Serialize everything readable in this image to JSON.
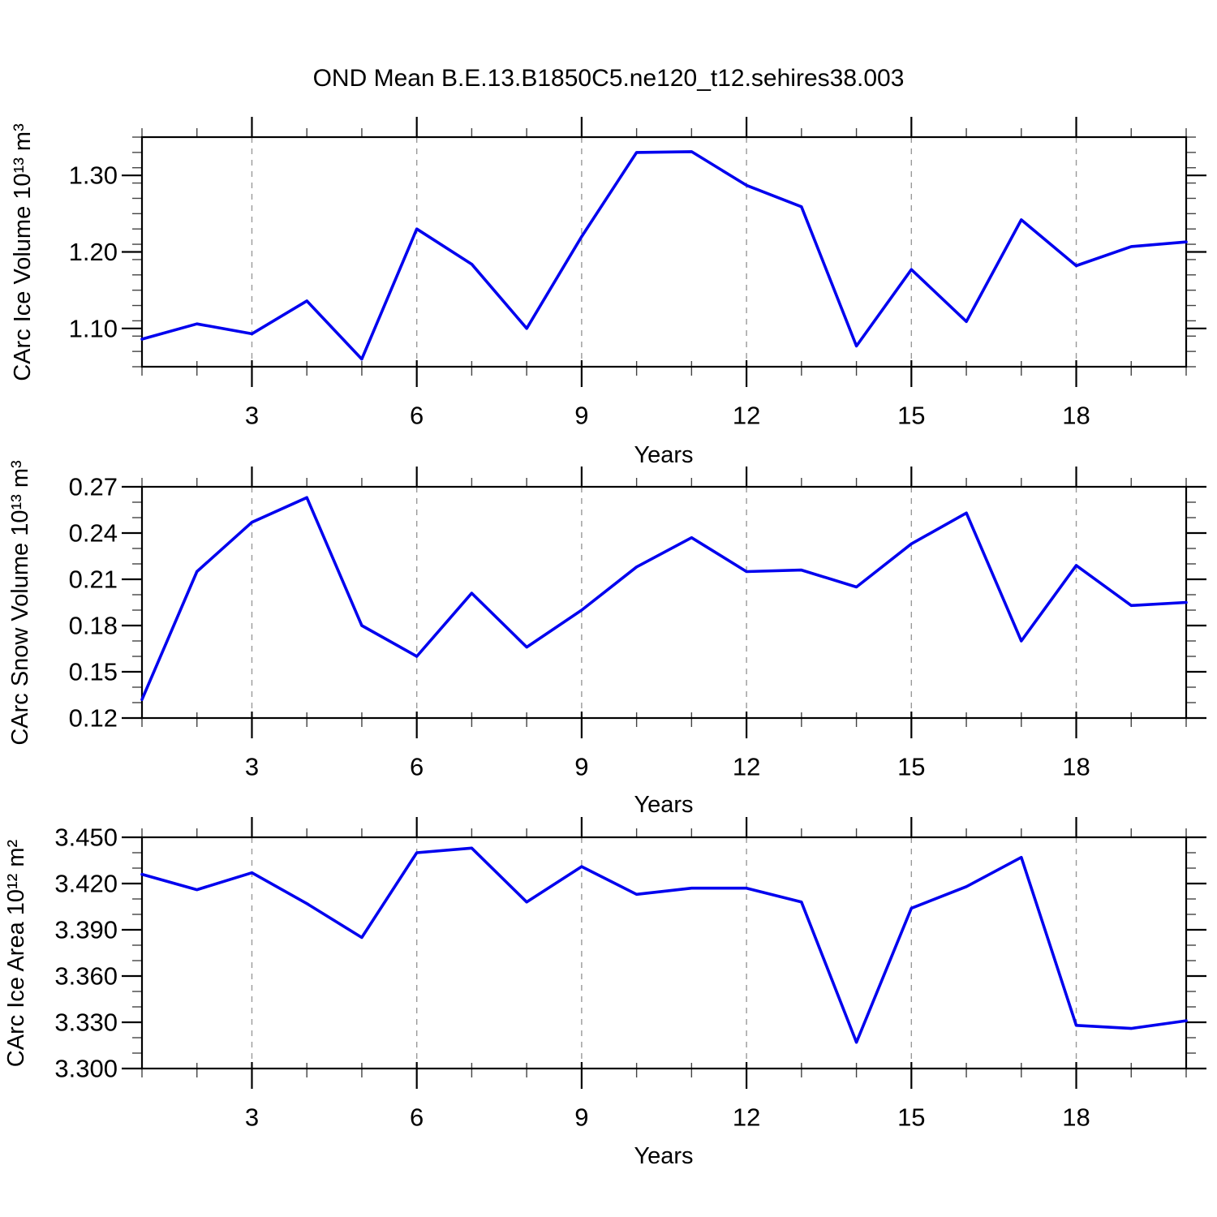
{
  "title": "OND Mean B.E.13.B1850C5.ne120_t12.sehires38.003",
  "colors": {
    "line": "#0000EE",
    "grid": "#999999",
    "frame": "#000000",
    "minor_tick": "#444444",
    "text": "#000000",
    "background": "#FFFFFF"
  },
  "chart_data": [
    {
      "type": "line",
      "ylabel": "CArc Ice Volume 10¹³ m³",
      "xlabel": "Years",
      "x": [
        1,
        2,
        3,
        4,
        5,
        6,
        7,
        8,
        9,
        10,
        11,
        12,
        13,
        14,
        15,
        16,
        17,
        18,
        19,
        20
      ],
      "values": [
        1.086,
        1.106,
        1.093,
        1.136,
        1.06,
        1.23,
        1.184,
        1.1,
        1.22,
        1.33,
        1.331,
        1.287,
        1.259,
        1.077,
        1.177,
        1.109,
        1.242,
        1.182,
        1.207,
        1.213
      ],
      "xlim": [
        1,
        20
      ],
      "ylim": [
        1.05,
        1.35
      ],
      "x_ticks_major": [
        3,
        6,
        9,
        12,
        15,
        18
      ],
      "x_tick_labels": [
        "3",
        "6",
        "9",
        "12",
        "15",
        "18"
      ],
      "x_tick_minor_step": 1,
      "y_ticks_major": [
        1.1,
        1.2,
        1.3
      ],
      "y_tick_labels": [
        "1.10",
        "1.20",
        "1.30"
      ],
      "y_tick_minor_step": 0.02,
      "grid": "vertical dashed lines at major x ticks",
      "legend": "none"
    },
    {
      "type": "line",
      "ylabel": "CArc Snow Volume 10¹³ m³",
      "xlabel": "Years",
      "x": [
        1,
        2,
        3,
        4,
        5,
        6,
        7,
        8,
        9,
        10,
        11,
        12,
        13,
        14,
        15,
        16,
        17,
        18,
        19,
        20
      ],
      "values": [
        0.132,
        0.215,
        0.247,
        0.263,
        0.18,
        0.16,
        0.201,
        0.166,
        0.19,
        0.218,
        0.237,
        0.215,
        0.216,
        0.205,
        0.233,
        0.253,
        0.17,
        0.219,
        0.193,
        0.195
      ],
      "xlim": [
        1,
        20
      ],
      "ylim": [
        0.12,
        0.27
      ],
      "x_ticks_major": [
        3,
        6,
        9,
        12,
        15,
        18
      ],
      "x_tick_labels": [
        "3",
        "6",
        "9",
        "12",
        "15",
        "18"
      ],
      "x_tick_minor_step": 1,
      "y_ticks_major": [
        0.12,
        0.15,
        0.18,
        0.21,
        0.24,
        0.27
      ],
      "y_tick_labels": [
        "0.12",
        "0.15",
        "0.18",
        "0.21",
        "0.24",
        "0.27"
      ],
      "y_tick_minor_step": 0.01,
      "grid": "vertical dashed lines at major x ticks",
      "legend": "none"
    },
    {
      "type": "line",
      "ylabel": "CArc Ice Area 10¹² m²",
      "xlabel": "Years",
      "x": [
        1,
        2,
        3,
        4,
        5,
        6,
        7,
        8,
        9,
        10,
        11,
        12,
        13,
        14,
        15,
        16,
        17,
        18,
        19,
        20
      ],
      "values": [
        3.426,
        3.416,
        3.427,
        3.407,
        3.385,
        3.44,
        3.443,
        3.408,
        3.431,
        3.413,
        3.417,
        3.417,
        3.408,
        3.317,
        3.404,
        3.418,
        3.437,
        3.328,
        3.326,
        3.331
      ],
      "xlim": [
        1,
        20
      ],
      "ylim": [
        3.3,
        3.45
      ],
      "x_ticks_major": [
        3,
        6,
        9,
        12,
        15,
        18
      ],
      "x_tick_labels": [
        "3",
        "6",
        "9",
        "12",
        "15",
        "18"
      ],
      "x_tick_minor_step": 1,
      "y_ticks_major": [
        3.3,
        3.33,
        3.36,
        3.39,
        3.42,
        3.45
      ],
      "y_tick_labels": [
        "3.300",
        "3.330",
        "3.360",
        "3.390",
        "3.420",
        "3.450"
      ],
      "y_tick_minor_step": 0.01,
      "grid": "vertical dashed lines at major x ticks",
      "legend": "none"
    }
  ]
}
